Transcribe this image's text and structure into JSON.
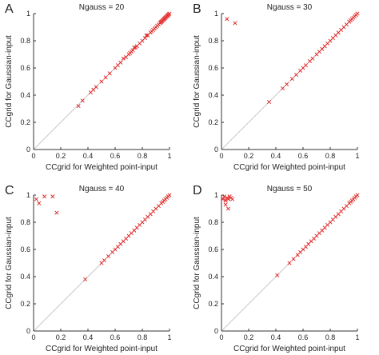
{
  "colors": {
    "marker": "#e02020",
    "diagonal": "#c8c8c8",
    "axis": "#333333",
    "text": "#222222"
  },
  "chart_data": [
    {
      "type": "scatter",
      "panel_label": "A",
      "title": "Ngauss = 20",
      "xlabel": "CCgrid for Weighted point-input",
      "ylabel": "CCgrid for Gaussian-input",
      "xlim": [
        0,
        1
      ],
      "ylim": [
        0,
        1
      ],
      "xticks": [
        "0",
        "0.2",
        "0.4",
        "0.6",
        "0.8",
        "1"
      ],
      "yticks": [
        "0",
        "0.2",
        "0.4",
        "0.6",
        "0.8",
        "1"
      ],
      "diagonal": true,
      "grid": false,
      "marker": "x",
      "x": [
        0.33,
        0.36,
        0.42,
        0.44,
        0.46,
        0.5,
        0.53,
        0.56,
        0.6,
        0.62,
        0.64,
        0.66,
        0.68,
        0.7,
        0.71,
        0.72,
        0.73,
        0.74,
        0.75,
        0.76,
        0.78,
        0.8,
        0.82,
        0.83,
        0.84,
        0.86,
        0.87,
        0.88,
        0.89,
        0.9,
        0.91,
        0.92,
        0.93,
        0.935,
        0.94,
        0.945,
        0.95,
        0.955,
        0.96,
        0.965,
        0.97,
        0.975,
        0.98,
        0.985,
        0.99,
        0.995,
        1.0
      ],
      "y": [
        0.32,
        0.36,
        0.42,
        0.44,
        0.46,
        0.5,
        0.53,
        0.56,
        0.6,
        0.62,
        0.64,
        0.67,
        0.68,
        0.7,
        0.71,
        0.72,
        0.73,
        0.75,
        0.75,
        0.76,
        0.78,
        0.8,
        0.82,
        0.84,
        0.84,
        0.86,
        0.87,
        0.88,
        0.89,
        0.9,
        0.91,
        0.92,
        0.93,
        0.935,
        0.94,
        0.945,
        0.95,
        0.955,
        0.96,
        0.965,
        0.97,
        0.975,
        0.98,
        0.985,
        0.99,
        0.995,
        1.0
      ]
    },
    {
      "type": "scatter",
      "panel_label": "B",
      "title": "Ngauss = 30",
      "xlabel": "CCgrid for Weighted point-input",
      "ylabel": "CCgrid for Gaussian-input",
      "xlim": [
        0,
        1
      ],
      "ylim": [
        0,
        1
      ],
      "xticks": [
        "0",
        "0.2",
        "0.4",
        "0.6",
        "0.8",
        "1"
      ],
      "yticks": [
        "0",
        "0.2",
        "0.4",
        "0.6",
        "0.8",
        "1"
      ],
      "diagonal": true,
      "grid": false,
      "marker": "x",
      "x": [
        0.04,
        0.1,
        0.35,
        0.45,
        0.48,
        0.52,
        0.55,
        0.58,
        0.6,
        0.62,
        0.65,
        0.67,
        0.7,
        0.72,
        0.74,
        0.76,
        0.78,
        0.8,
        0.82,
        0.84,
        0.86,
        0.88,
        0.9,
        0.92,
        0.94,
        0.95,
        0.96,
        0.97,
        0.98,
        0.99,
        1.0
      ],
      "y": [
        0.96,
        0.93,
        0.35,
        0.45,
        0.48,
        0.52,
        0.55,
        0.58,
        0.6,
        0.62,
        0.65,
        0.67,
        0.7,
        0.72,
        0.74,
        0.76,
        0.78,
        0.8,
        0.82,
        0.84,
        0.86,
        0.88,
        0.9,
        0.92,
        0.94,
        0.95,
        0.96,
        0.97,
        0.98,
        0.99,
        1.0
      ]
    },
    {
      "type": "scatter",
      "panel_label": "C",
      "title": "Ngauss = 40",
      "xlabel": "CCgrid for Weighted point-input",
      "ylabel": "CCgrid for Gaussian-input",
      "xlim": [
        0,
        1
      ],
      "ylim": [
        0,
        1
      ],
      "xticks": [
        "0",
        "0.2",
        "0.4",
        "0.6",
        "0.8",
        "1"
      ],
      "yticks": [
        "0",
        "0.2",
        "0.4",
        "0.6",
        "0.8",
        "1"
      ],
      "diagonal": true,
      "grid": false,
      "marker": "x",
      "x": [
        0.02,
        0.04,
        0.08,
        0.14,
        0.17,
        0.38,
        0.5,
        0.52,
        0.55,
        0.58,
        0.6,
        0.62,
        0.64,
        0.66,
        0.68,
        0.7,
        0.72,
        0.74,
        0.76,
        0.78,
        0.8,
        0.82,
        0.84,
        0.86,
        0.88,
        0.9,
        0.92,
        0.94,
        0.95,
        0.96,
        0.97,
        0.98,
        0.99,
        1.0
      ],
      "y": [
        0.97,
        0.94,
        0.99,
        0.99,
        0.87,
        0.38,
        0.5,
        0.52,
        0.55,
        0.58,
        0.6,
        0.62,
        0.64,
        0.66,
        0.68,
        0.7,
        0.72,
        0.74,
        0.76,
        0.78,
        0.8,
        0.82,
        0.84,
        0.86,
        0.88,
        0.9,
        0.92,
        0.94,
        0.95,
        0.96,
        0.97,
        0.98,
        0.99,
        1.0
      ]
    },
    {
      "type": "scatter",
      "panel_label": "D",
      "title": "Ngauss = 50",
      "xlabel": "CCgrid for Weighted point-input",
      "ylabel": "CCgrid for Gaussian-input",
      "xlim": [
        0,
        1
      ],
      "ylim": [
        0,
        1
      ],
      "xticks": [
        "0",
        "0.2",
        "0.4",
        "0.6",
        "0.8",
        "1"
      ],
      "yticks": [
        "0",
        "0.2",
        "0.4",
        "0.6",
        "0.8",
        "1"
      ],
      "diagonal": true,
      "grid": false,
      "marker": "x",
      "x": [
        0.01,
        0.02,
        0.03,
        0.04,
        0.05,
        0.06,
        0.07,
        0.08,
        0.03,
        0.05,
        0.41,
        0.5,
        0.53,
        0.56,
        0.58,
        0.6,
        0.62,
        0.64,
        0.66,
        0.68,
        0.7,
        0.72,
        0.74,
        0.76,
        0.78,
        0.8,
        0.82,
        0.84,
        0.86,
        0.88,
        0.9,
        0.92,
        0.94,
        0.95,
        0.96,
        0.97,
        0.98,
        0.99,
        1.0
      ],
      "y": [
        0.97,
        0.99,
        0.96,
        0.98,
        0.97,
        0.99,
        0.98,
        0.97,
        0.93,
        0.9,
        0.41,
        0.5,
        0.53,
        0.56,
        0.58,
        0.6,
        0.62,
        0.64,
        0.66,
        0.68,
        0.7,
        0.72,
        0.74,
        0.76,
        0.78,
        0.8,
        0.82,
        0.84,
        0.86,
        0.88,
        0.9,
        0.92,
        0.94,
        0.95,
        0.96,
        0.97,
        0.98,
        0.99,
        1.0
      ]
    }
  ]
}
